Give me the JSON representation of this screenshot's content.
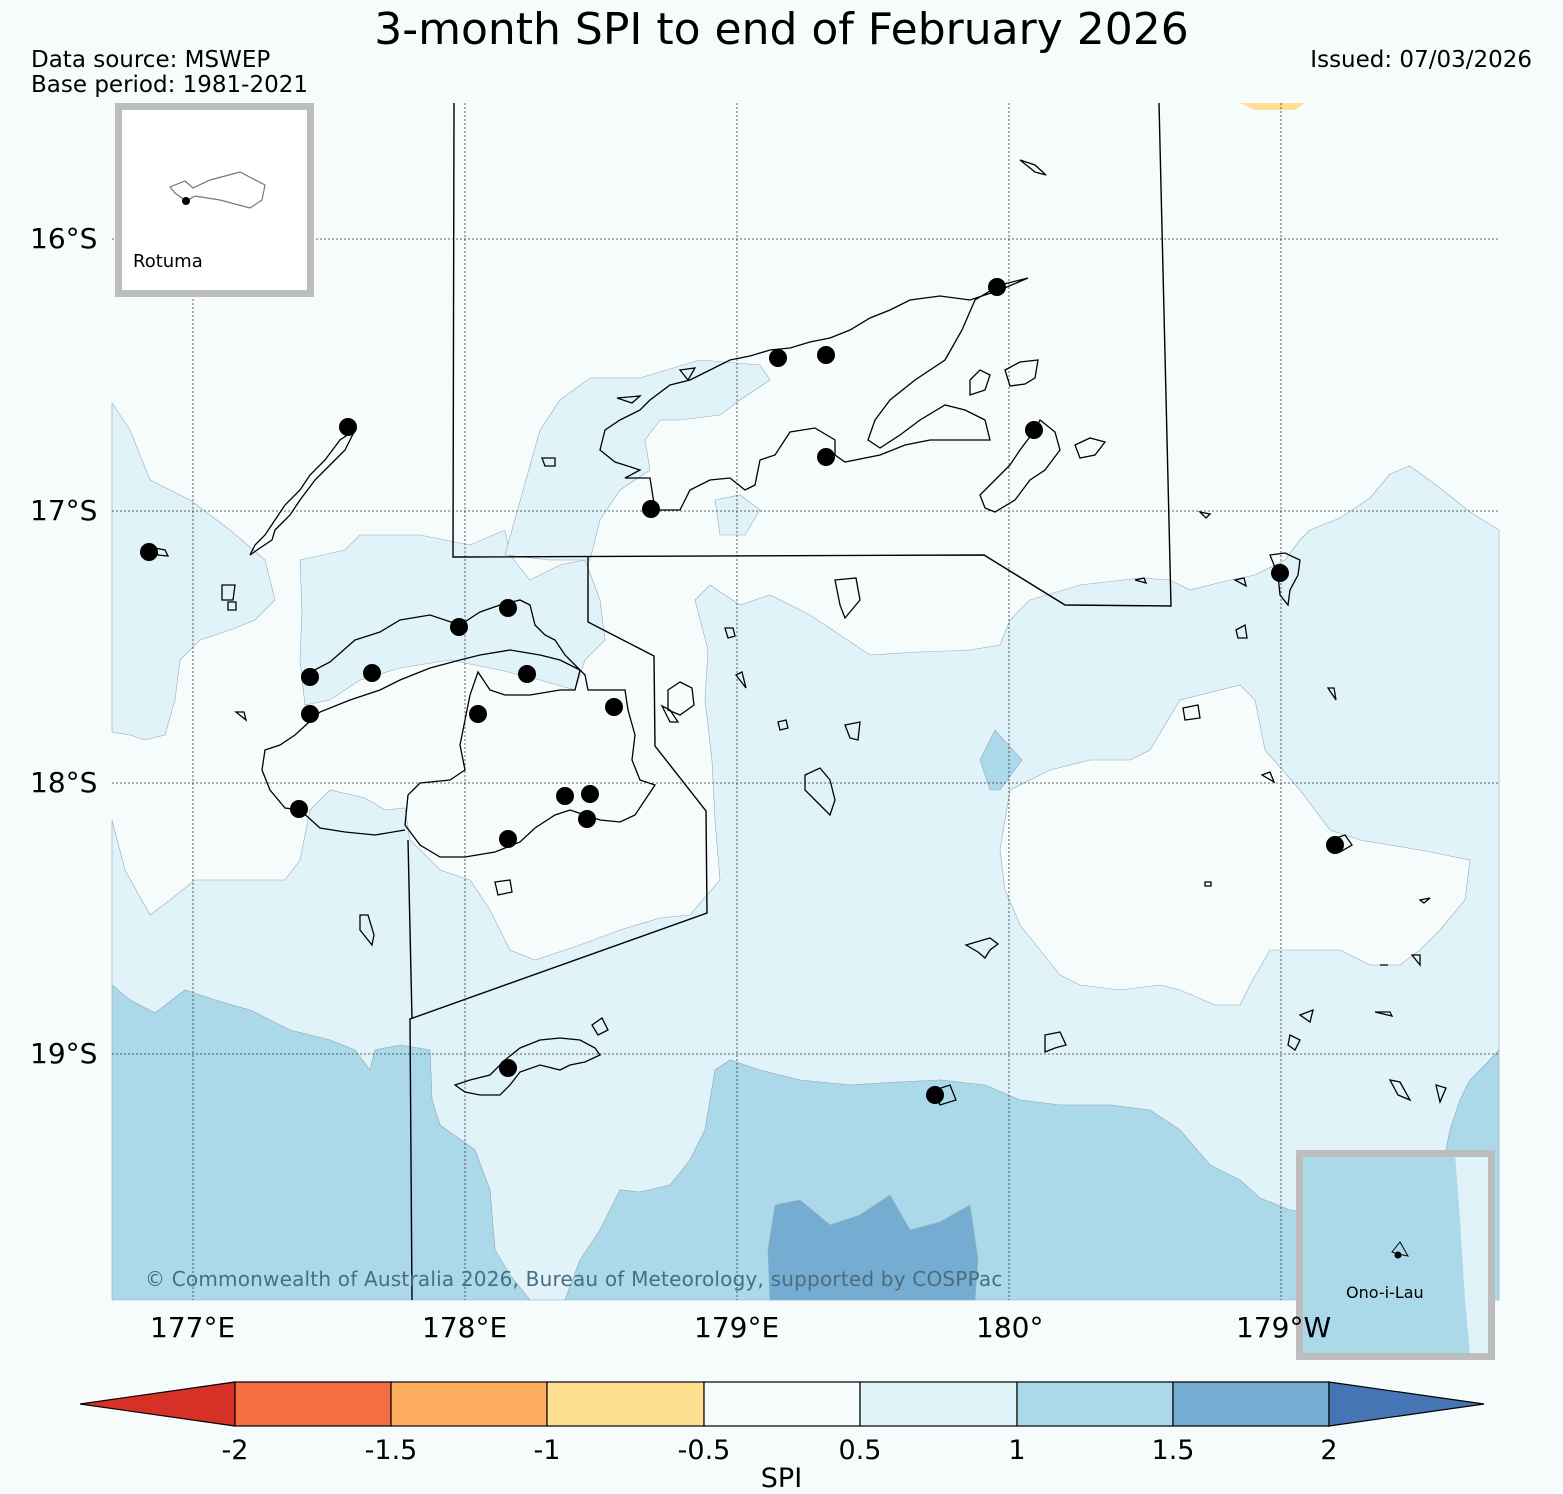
{
  "header": {
    "title": "3-month SPI to end of February 2026",
    "data_source": "Data source: MSWEP",
    "base_period": "Base period: 1981-2021",
    "issued": "Issued: 07/03/2026"
  },
  "map": {
    "lat_labels": [
      "16°S",
      "17°S",
      "18°S",
      "19°S"
    ],
    "lon_labels": [
      "177°E",
      "178°E",
      "179°E",
      "180°",
      "179°W"
    ],
    "copyright": "© Commonwealth of Australia 2026, Bureau of Meteorology, supported by COSPPac",
    "insets": {
      "rotuma": "Rotuma",
      "ono_i_lau": "Ono-i-Lau"
    }
  },
  "colorbar": {
    "title": "SPI",
    "ticks": [
      "-2",
      "-1.5",
      "-1",
      "-0.5",
      "0.5",
      "1",
      "1.5",
      "2"
    ],
    "colors": {
      "below_minus_2": "#d73027",
      "minus_2_to_minus_1_5": "#f46d43",
      "minus_1_5_to_minus_1": "#fdae61",
      "minus_1_to_minus_0_5": "#fee090",
      "minus_0_5_to_0_5": "#f6fbfc",
      "0_5_to_1": "#e0f3f8",
      "1_to_1_5": "#abd9e9",
      "1_5_to_2": "#74add1",
      "above_2": "#4575b4"
    }
  }
}
